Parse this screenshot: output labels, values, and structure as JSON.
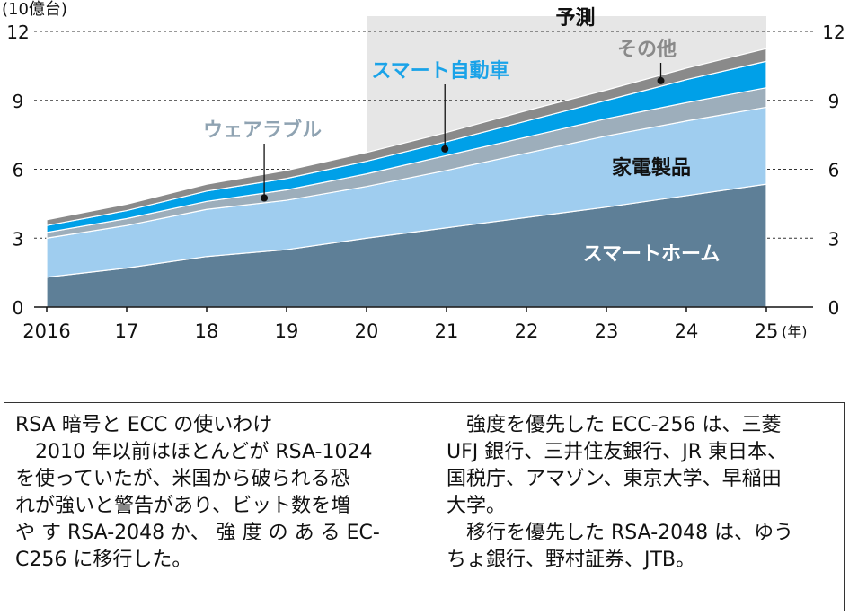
{
  "chart_data": {
    "type": "area",
    "stacked": true,
    "unit_label": "(10億台)",
    "x_unit_label": "(年)",
    "forecast_label": "予測",
    "x": [
      2016,
      2017,
      2018,
      2019,
      2020,
      2021,
      2022,
      2023,
      2024,
      2025
    ],
    "x_tick_labels": [
      "2016",
      "17",
      "18",
      "19",
      "20",
      "21",
      "22",
      "23",
      "24",
      "25"
    ],
    "y_ticks": [
      0,
      3,
      6,
      9,
      12
    ],
    "ylim": [
      0,
      12
    ],
    "forecast_range": [
      2020,
      2025
    ],
    "grid": true,
    "series": [
      {
        "name": "スマートホーム",
        "values": [
          1.3,
          1.7,
          2.2,
          2.5,
          3.0,
          3.45,
          3.9,
          4.35,
          4.85,
          5.35
        ],
        "color": "#5e7f97"
      },
      {
        "name": "家電製品",
        "values": [
          1.7,
          1.85,
          2.05,
          2.15,
          2.25,
          2.5,
          2.8,
          3.1,
          3.25,
          3.35
        ],
        "color": "#9fcdef"
      },
      {
        "name": "ウェアラブル",
        "values": [
          0.25,
          0.3,
          0.35,
          0.45,
          0.55,
          0.65,
          0.7,
          0.75,
          0.8,
          0.85
        ],
        "color": "#9daebb"
      },
      {
        "name": "スマート自動車",
        "values": [
          0.3,
          0.35,
          0.45,
          0.5,
          0.55,
          0.6,
          0.7,
          0.8,
          1.0,
          1.15
        ],
        "color": "#00a0e8"
      },
      {
        "name": "その他",
        "values": [
          0.25,
          0.28,
          0.3,
          0.35,
          0.38,
          0.4,
          0.45,
          0.45,
          0.5,
          0.55
        ],
        "color": "#8a8a8a"
      }
    ]
  },
  "note": {
    "left_lines": [
      "RSA 暗号と ECC の使いわけ",
      "2010 年以前はほとんどが RSA-1024",
      "を使っていたが、米国から破られる恐",
      "れが強いと警告があり、ビット数を増",
      "や す RSA-2048 か、 強 度 の あ る EC-",
      "C256 に移行した。"
    ],
    "right_lines": [
      "強度を優先した ECC-256 は、三菱",
      "UFJ 銀行、三井住友銀行、JR 東日本、",
      "国税庁、アマゾン、東京大学、早稲田",
      "大学。",
      "移行を優先した RSA-2048 は、ゆう",
      "ちょ銀行、野村証券、JTB。"
    ]
  }
}
